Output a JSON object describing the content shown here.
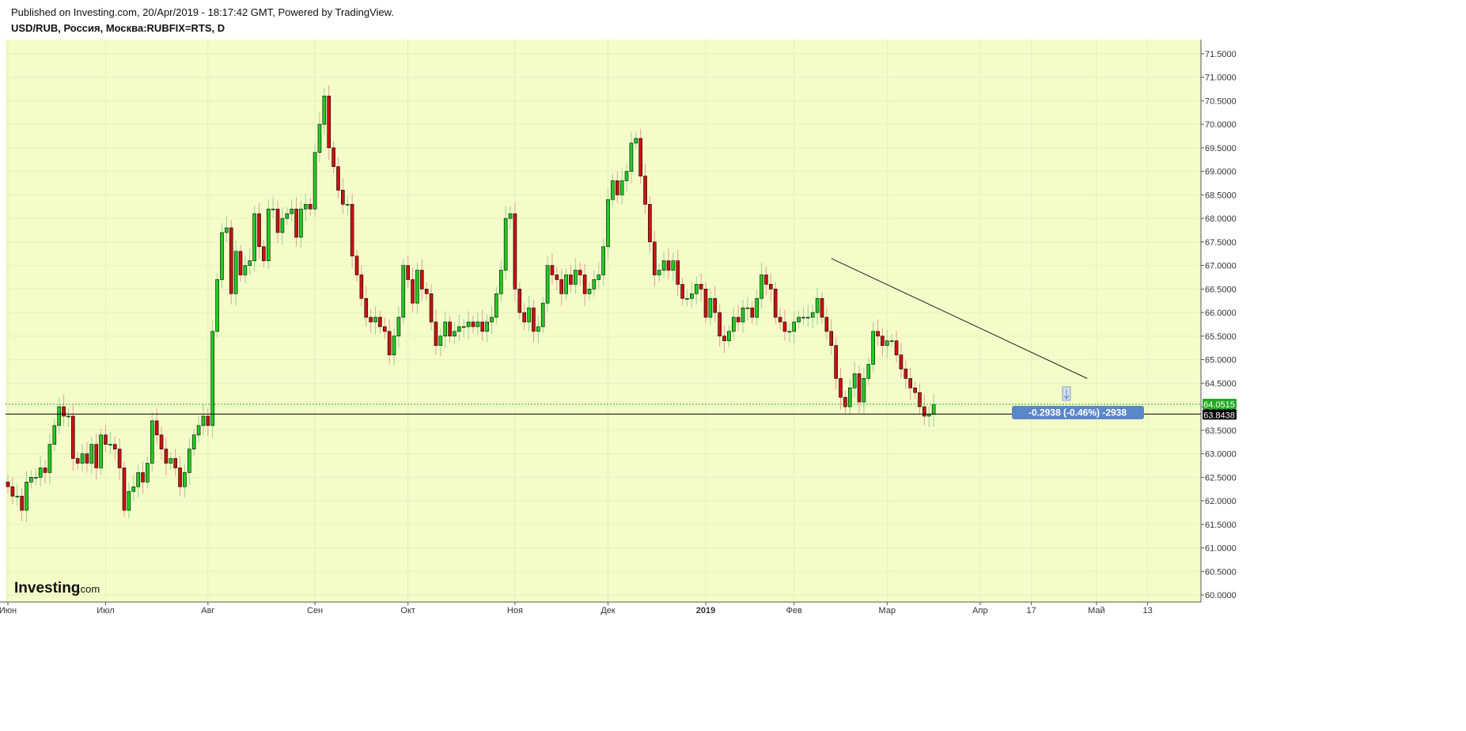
{
  "header": {
    "published": "Published on Investing.com, 20/Apr/2019 - 18:17:42 GMT, Powered by TradingView.",
    "symbol": "USD/RUB, Россия, Москва:RUBFIX=RTS, D"
  },
  "colors": {
    "background": "#f4fdc8",
    "up_candle": "#22cc22",
    "down_candle": "#cc1111",
    "price_tag_current": "#000000",
    "price_tag_last": "#22aa22",
    "measure_bubble": "#5b86c8",
    "trendline": "#222222"
  },
  "logo": {
    "main": "Investing",
    "suffix": ".com"
  },
  "price_tags": {
    "last": "64.0515",
    "current": "63.8438"
  },
  "measure": {
    "label": "-0.2938 (-0.46%) -2938"
  },
  "chart_data": {
    "type": "candlestick",
    "ylim": [
      59.85,
      71.8
    ],
    "y_ticks": [
      "71.5000",
      "71.0000",
      "70.5000",
      "70.0000",
      "69.5000",
      "69.0000",
      "68.5000",
      "68.0000",
      "67.5000",
      "67.0000",
      "66.5000",
      "66.0000",
      "65.5000",
      "65.0000",
      "64.5000",
      "64.0000",
      "63.5000",
      "63.0000",
      "62.5000",
      "62.0000",
      "61.5000",
      "61.0000",
      "60.5000",
      "60.0000"
    ],
    "x_ticks": [
      {
        "label": "Июн",
        "index": 0
      },
      {
        "label": "Июл",
        "index": 21
      },
      {
        "label": "Авг",
        "index": 43
      },
      {
        "label": "Сен",
        "index": 66
      },
      {
        "label": "Окт",
        "index": 86
      },
      {
        "label": "Ноя",
        "index": 109
      },
      {
        "label": "Дек",
        "index": 129
      },
      {
        "label": "2019",
        "index": 150
      },
      {
        "label": "Фев",
        "index": 169
      },
      {
        "label": "Мар",
        "index": 189
      },
      {
        "label": "Апр",
        "index": 209
      },
      {
        "label": "17",
        "index": 220
      },
      {
        "label": "Май",
        "index": 234
      },
      {
        "label": "13",
        "index": 245
      }
    ],
    "horizontal_lines": [
      {
        "value": 63.8438,
        "style": "solid"
      },
      {
        "value": 64.0515,
        "style": "dotted"
      }
    ],
    "trendline": {
      "start": {
        "index": 177,
        "value": 67.15
      },
      "end": {
        "index": 232,
        "value": 64.6
      }
    },
    "closes": [
      62.3,
      62.1,
      62.1,
      61.8,
      62.4,
      62.5,
      62.5,
      62.7,
      62.6,
      63.2,
      63.6,
      64.0,
      63.8,
      63.8,
      62.9,
      62.8,
      63.0,
      62.8,
      63.2,
      62.7,
      63.4,
      63.2,
      63.2,
      63.1,
      62.7,
      61.8,
      62.2,
      62.3,
      62.6,
      62.4,
      62.8,
      63.7,
      63.4,
      63.1,
      62.8,
      62.9,
      62.7,
      62.3,
      62.6,
      63.1,
      63.4,
      63.6,
      63.8,
      63.6,
      65.6,
      66.7,
      67.7,
      67.8,
      66.4,
      67.3,
      66.8,
      67.0,
      67.1,
      68.1,
      67.4,
      67.1,
      68.2,
      68.2,
      67.7,
      68.0,
      68.1,
      68.2,
      67.6,
      68.2,
      68.3,
      68.2,
      69.4,
      70.0,
      70.6,
      69.5,
      69.1,
      68.6,
      68.3,
      68.3,
      67.2,
      66.8,
      66.3,
      65.9,
      65.8,
      65.9,
      65.7,
      65.6,
      65.1,
      65.5,
      65.9,
      67.0,
      66.7,
      66.2,
      66.9,
      66.5,
      66.4,
      65.8,
      65.3,
      65.5,
      65.8,
      65.5,
      65.6,
      65.7,
      65.7,
      65.8,
      65.7,
      65.8,
      65.6,
      65.8,
      65.9,
      66.4,
      66.9,
      68.0,
      68.1,
      66.5,
      66.0,
      65.8,
      66.1,
      65.6,
      65.7,
      66.2,
      67.0,
      66.8,
      66.7,
      66.4,
      66.8,
      66.6,
      66.9,
      66.8,
      66.4,
      66.5,
      66.7,
      66.8,
      67.4,
      68.4,
      68.8,
      68.5,
      68.8,
      69.0,
      69.6,
      69.7,
      68.9,
      68.3,
      67.5,
      66.8,
      66.9,
      67.1,
      66.9,
      67.1,
      66.6,
      66.3,
      66.3,
      66.4,
      66.6,
      66.5,
      65.9,
      66.3,
      66.0,
      65.5,
      65.4,
      65.6,
      65.9,
      65.8,
      66.1,
      66.1,
      65.9,
      66.3,
      66.8,
      66.6,
      66.5,
      65.9,
      65.8,
      65.6,
      65.6,
      65.8,
      65.9,
      65.9,
      65.9,
      66.0,
      66.3,
      65.9,
      65.6,
      65.3,
      64.6,
      64.2,
      64.0,
      64.4,
      64.7,
      64.1,
      64.6,
      64.9,
      65.6,
      65.5,
      65.3,
      65.4,
      65.4,
      65.1,
      64.8,
      64.6,
      64.4,
      64.3,
      64.0,
      63.8,
      63.84,
      64.05
    ]
  }
}
